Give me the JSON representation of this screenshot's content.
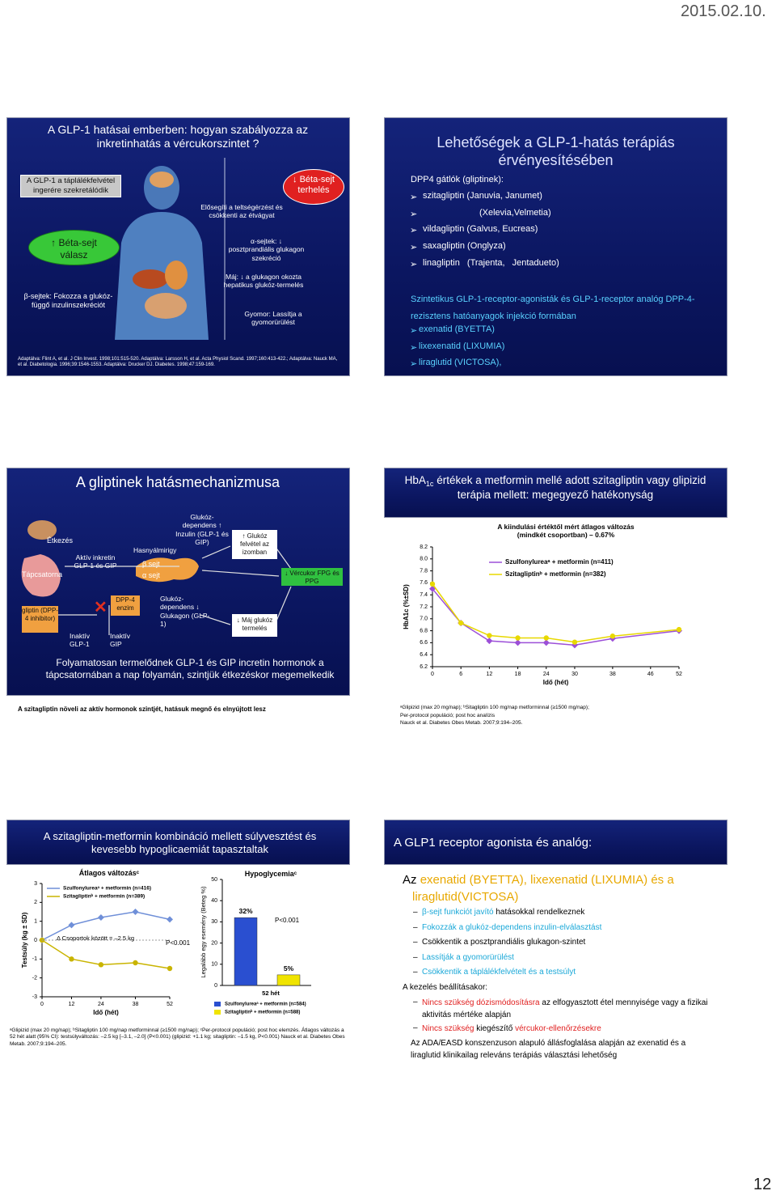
{
  "header": {
    "date": "2015.02.10.",
    "page_number": "12"
  },
  "slide1": {
    "title": "A GLP-1 hatásai emberben: hogyan szabályozza az inkretinhatás a vércukorszintet ?",
    "secretion": "A GLP-1 a táplálékfelvétel ingerére szekretálódik",
    "beta_response": "↑ Béta-sejt válasz",
    "beta_cells": "β-sejtek: Fokozza a glukóz-függő inzulinszekréciót",
    "satiety": "Elősegíti a teltségérzést és csökkenti az étvágyat",
    "beta_load": "↓ Béta-sejt terhelés",
    "alpha_cells": "α-sejtek: ↓ posztprandiális glukagon szekréció",
    "liver": "Máj: ↓ a glukagon okozta hepatikus glukóz-termelés",
    "stomach": "Gyomor: Lassítja a gyomorürülést",
    "reference": "Adaptálva: Flint A, et al. J Clin Invest. 1998;101:515-520. Adaptálva: Larsson H, et al. Acta Physiol Scand. 1997;160:413-422.; Adaptálva: Nauck MA, et al. Diabetologia. 1996;39:1546-1553. Adaptálva: Drucker DJ. Diabetes. 1998;47:159-169."
  },
  "slide2": {
    "title": "Lehetőségek a GLP-1-hatás terápiás érvényesítésében",
    "dpp4_heading": "DPP4 gátlók (gliptinek):",
    "dpp4_items": [
      "szitagliptin (Januvia, Janumet)",
      "(Xelevia,Velmetia)",
      "vildagliptin (Galvus, Eucreas)",
      "saxagliptin (Onglyza)",
      "linagliptin (Trajenta, Jentadueto)"
    ],
    "glp1_heading": "Szintetikus GLP-1-receptor-agonisták és GLP-1-receptor analóg DPP-4-rezisztens hatóanyagok injekció formában",
    "glp1_items": [
      "exenatid (BYETTA)",
      "lixexenatid (LIXUMIA)",
      "liraglutid (VICTOSA),"
    ]
  },
  "slide3": {
    "title": "A gliptinek hatásmechanizmusa",
    "meal": "Étkezés",
    "gut": "Tápcsatorna",
    "active_incretin": "Aktív inkretin GLP-1 és GIP",
    "pancreas": "Hasnyálmirigy",
    "beta_cell": "β sejt",
    "alpha_cell": "α sejt",
    "insulin": "Glukóz-dependens ↑ Inzulin (GLP-1 és GIP)",
    "muscle": "↑ Glukóz felvétel az izomban",
    "glucose": "↓ Vércukor FPG és PPG",
    "gliptin": "gliptin (DPP-4 inhibitor)",
    "dpp4_enzyme": "DPP-4 enzim",
    "inactive_glp1": "Inaktív GLP-1",
    "inactive_gip": "Inaktív GIP",
    "glucagon": "Glukóz-dependens ↓ Glukagon (GLP-1)",
    "liver": "↓ Máj glukóz termelés",
    "summary": "Folyamatosan termelődnek GLP-1 és GIP incretin hormonok a tápcsatornában a nap folyamán, szintjük étkezéskor megemelkedik",
    "caption": "A szitagliptin növeli az aktív hormonok szintjét, hatásuk megnő és elnyújtott lesz"
  },
  "slide4": {
    "title_parts": [
      "HbA",
      "1c",
      " értékek a metformin mellé adott szitagliptin vagy glipizid terápia mellett: megegyező hatékonyság"
    ],
    "chart": {
      "type": "line",
      "title": "A kiindulási értéktől mért átlagos változás (mindkét csoportban) – 0.67%",
      "x": [
        0,
        6,
        12,
        18,
        24,
        30,
        38,
        52
      ],
      "series": [
        {
          "name": "Szulfonylureaᵃ + metformin (n=411)",
          "color": "#9c4fd8",
          "marker": "diamond",
          "values": [
            7.5,
            6.93,
            6.63,
            6.6,
            6.6,
            6.56,
            6.67,
            6.8
          ]
        },
        {
          "name": "Szitagliptinᵇ + metformin (n=382)",
          "color": "#e8d800",
          "marker": "circle",
          "values": [
            7.58,
            6.93,
            6.72,
            6.68,
            6.68,
            6.61,
            6.71,
            6.82
          ]
        }
      ],
      "xlabel": "Idő (hét)",
      "ylabel": "HbA1c (%±SD)",
      "xlim": [
        0,
        52
      ],
      "xticks": [
        0,
        6,
        12,
        18,
        24,
        30,
        38,
        46,
        52
      ],
      "ylim": [
        6.2,
        8.2
      ],
      "yticks": [
        6.2,
        6.4,
        6.6,
        6.8,
        {
          "value": 7,
          "label": "7.0"
        },
        7.2,
        7.4,
        7.6,
        7.8,
        {
          "value": 8,
          "label": "8.0"
        },
        8.2
      ]
    },
    "footnote": [
      "ᵃGlipizid (max 20 mg/nap); ᵇSitagliptin 100 mg/nap metforminnal (≥1500 mg/nap);",
      "Per-protocol populáció; post hoc analízis",
      "Nauck et al. Diabetes Obes Metab. 2007;9:194–205."
    ]
  },
  "slide5": {
    "title": "A szitagliptin-metformin kombináció mellett súlyvesztést és kevesebb hypoglicaemiát tapasztaltak",
    "weight_chart": {
      "type": "line",
      "title": "Átlagos változásᶜ",
      "x": [
        0,
        12,
        24,
        38,
        52
      ],
      "series": [
        {
          "name": "Szulfonylureaᵃ + metformin (n=416)",
          "color": "#6f8fd8",
          "marker": "diamond",
          "values": [
            0,
            0.8,
            1.2,
            1.5,
            1.1
          ]
        },
        {
          "name": "Szitagliptinᵇ + metformin (n=389)",
          "color": "#c9b400",
          "marker": "circle",
          "values": [
            0,
            -1.0,
            -1.3,
            -1.2,
            -1.5
          ]
        }
      ],
      "annotation": "Δ Csoportok között = –2.5 kg",
      "p_value": "P<0.001",
      "xlabel": "Idő (hét)",
      "ylabel": "Testsúly (kg ± SD)",
      "xlim": [
        0,
        52
      ],
      "xticks": [
        0,
        12,
        24,
        38,
        52
      ],
      "ylim": [
        -3,
        3
      ],
      "yticks": [
        -3,
        -2,
        -1,
        0,
        1,
        2,
        3
      ]
    },
    "hypo_chart": {
      "type": "bar",
      "title": "Hypoglycemiaᶜ",
      "categories": [
        "52 hét"
      ],
      "series": [
        {
          "name": "Szulfonylureaᵃ + metformin (n=584)",
          "color": "#2a4fd0",
          "values": [
            32
          ],
          "value_labels": [
            "32%"
          ]
        },
        {
          "name": "Szitagliptinᵇ + metformin (n=588)",
          "color": "#f0e400",
          "values": [
            5
          ],
          "value_labels": [
            "5%"
          ]
        }
      ],
      "p_value": "P<0.001",
      "ylabel": "Legalább egy esemény (Beteg %)",
      "ylim": [
        0,
        50
      ],
      "yticks": [
        0,
        10,
        20,
        30,
        40,
        50
      ]
    },
    "footnote": "ᵃGlipizid (max 20 mg/nap); ᵇSitagliptin 100 mg/nap metforminnal (≥1500 mg/nap); ᶜPer-protocol populáció; post hoc elemzés. Átlagos változás a 52 hét alatt (95% CI): testsúlyváltozás: –2.5 kg [–3.1, –2.0] (P<0.001) (glipizid: +1.1 kg; sitagliptin: –1.5 kg, P<0.001)       Nauck et al. Diabetes Obes Metab. 2007;9:194–205."
  },
  "slide6": {
    "title": "A GLP1 receptor agonista és analóg:",
    "lead": [
      "Az ",
      "exenatid (BYETTA), lixexenatid (LIXUMIA) és a liraglutid(VICTOSA)"
    ],
    "effects": [
      [
        "β-sejt funkciót javító",
        " hatásokkal rendelkeznek"
      ],
      [
        "Fokozzák a glukóz-dependens inzulin-elválasztást"
      ],
      [
        "Csökkentik a posztprandiális glukagon-szintet"
      ],
      [
        "Lassítják a gyomorürülést"
      ],
      [
        "Csökkentik a táplálékfelvételt és a testsúlyt"
      ]
    ],
    "treatment_heading": "A kezelés beállításakor:",
    "treatment": [
      [
        "Nincs szükség dózismódosításra",
        " az elfogyasztott étel mennyisége vagy a fizikai aktivitás mértéke alapján"
      ],
      [
        "Nincs szükség",
        " kiegészítő ",
        "vércukor-ellenőrzésekre"
      ]
    ],
    "conclusion": "Az ADA/EASD konszenzuson alapuló állásfoglalása alapján az exenatid és a liraglutid klinikailag releváns terápiás választási lehetőség"
  }
}
